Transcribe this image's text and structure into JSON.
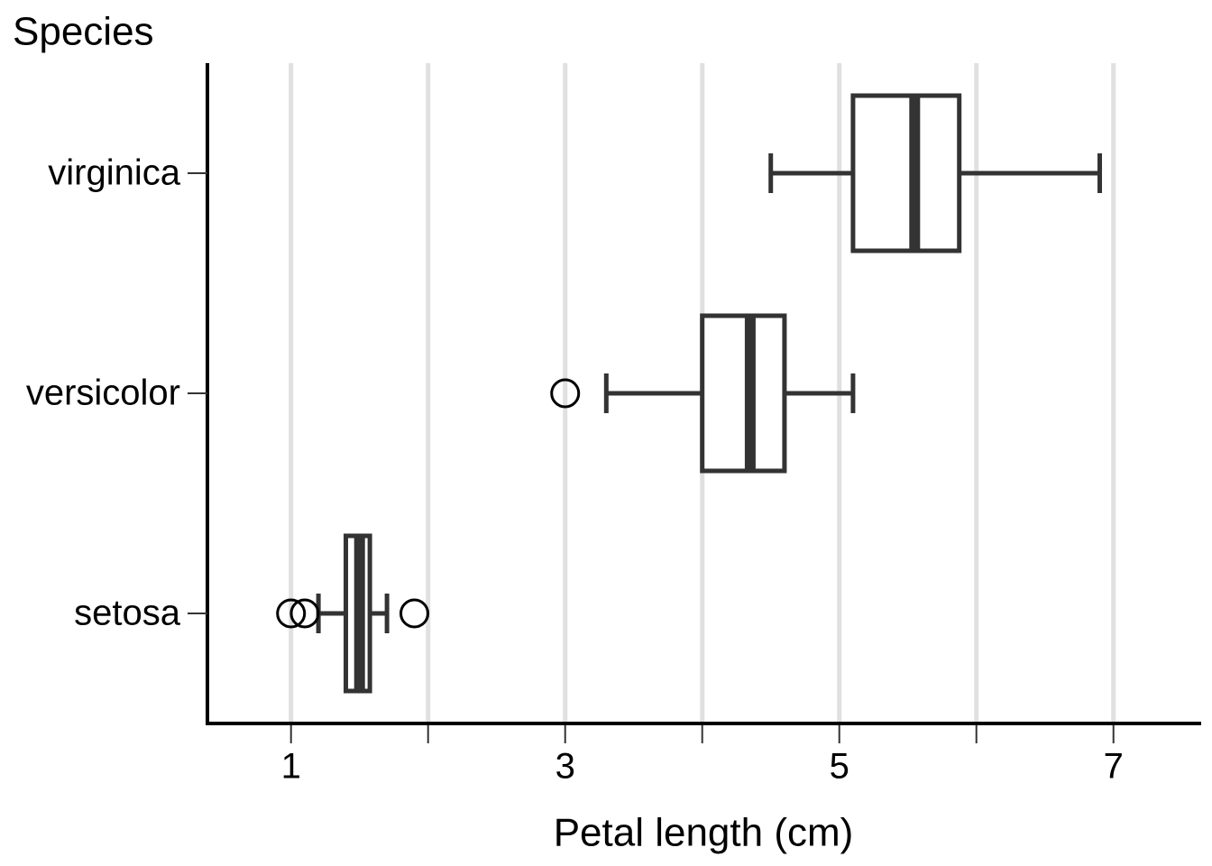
{
  "chart_data": {
    "type": "boxplot",
    "orientation": "horizontal",
    "y_axis_label": "Species",
    "x_axis_label": "Petal length (cm)",
    "categories": [
      "setosa",
      "versicolor",
      "virginica"
    ],
    "boxes": [
      {
        "low": 1.2,
        "q1": 1.4,
        "median": 1.5,
        "q3": 1.575,
        "high": 1.7,
        "outliers": [
          1.0,
          1.1,
          1.9
        ]
      },
      {
        "low": 3.3,
        "q1": 4.0,
        "median": 4.35,
        "q3": 4.6,
        "high": 5.1,
        "outliers": [
          3.0
        ]
      },
      {
        "low": 4.5,
        "q1": 5.1,
        "median": 5.55,
        "q3": 5.875,
        "high": 6.9,
        "outliers": []
      }
    ],
    "xlim": [
      0.39,
      7.64
    ],
    "xticks": [
      1,
      3,
      5,
      7
    ],
    "xminorticks": [
      2,
      4,
      6
    ],
    "grid": true,
    "color": "#333333",
    "grid_color": "#e0e0e0"
  }
}
